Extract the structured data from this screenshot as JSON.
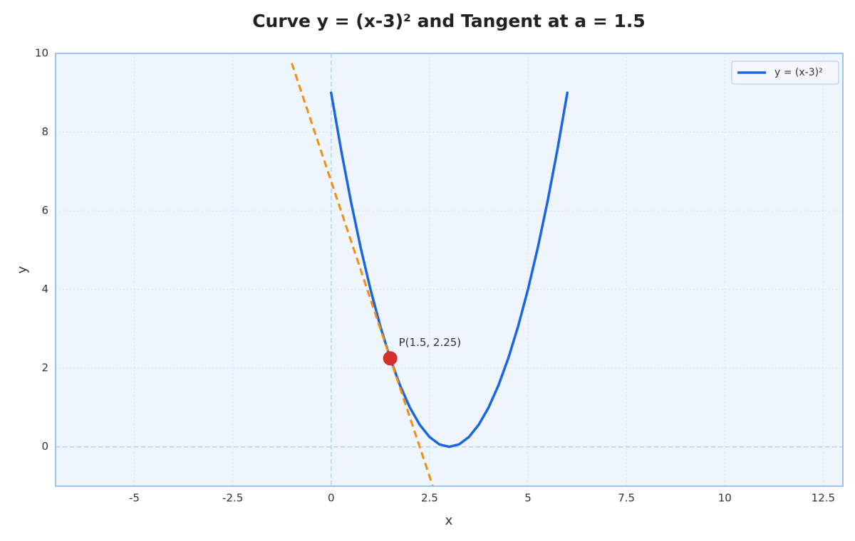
{
  "chart_data": {
    "type": "line",
    "title": "Curve y = (x-3)² and Tangent at a = 1.5",
    "x_label": "x",
    "y_label": "y",
    "xlim": [
      -7,
      13
    ],
    "ylim": [
      -1,
      10
    ],
    "xticks": [
      -5,
      -2.5,
      0,
      2.5,
      5,
      7.5,
      10,
      12.5
    ],
    "yticks": [
      0,
      2,
      4,
      6,
      8,
      10
    ],
    "grid": true,
    "legend": "upper right",
    "hline": 0,
    "vline": 0,
    "series": [
      {
        "name": "y = (x-3)²",
        "color": "#1a66e0",
        "x": [
          0,
          0.25,
          0.5,
          0.75,
          1,
          1.25,
          1.5,
          1.75,
          2,
          2.25,
          2.5,
          2.75,
          3,
          3.25,
          3.5,
          3.75,
          4,
          4.25,
          4.5,
          4.75,
          5,
          5.25,
          5.5,
          5.75,
          6
        ],
        "values": [
          9,
          7.5625,
          6.25,
          5.0625,
          4,
          3.0625,
          2.25,
          1.5625,
          1,
          0.5625,
          0.25,
          0.0625,
          0,
          0.0625,
          0.25,
          0.5625,
          1,
          1.5625,
          2.25,
          3.0625,
          4,
          5.0625,
          6.25,
          7.5625,
          9
        ]
      }
    ],
    "tangent": {
      "color": "#f28e13",
      "x": [
        -1,
        2.6
      ],
      "values": [
        9.75,
        -1.05
      ]
    },
    "point": {
      "x": 1.5,
      "y": 2.25,
      "label": "P(1.5, 2.25)",
      "color": "#d32f2f"
    }
  }
}
